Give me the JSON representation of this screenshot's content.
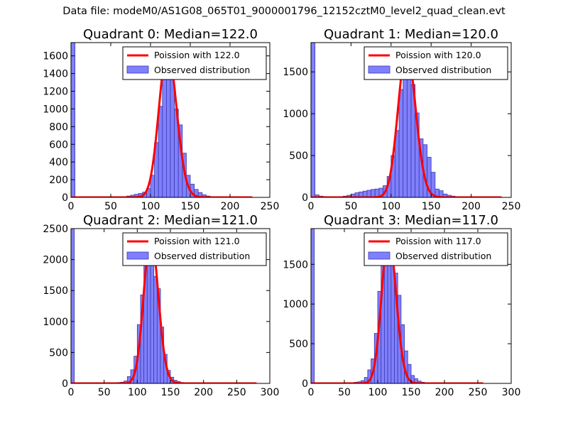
{
  "figure": {
    "suptitle": "Data file: modeM0/AS1G08_065T01_9000001796_12152cztM0_level2_quad_clean.evt",
    "colors": {
      "bar_fill": "#8080ff",
      "bar_edge": "#3a3aa8",
      "poisson_line": "#ff0000",
      "legend_edge": "#000000"
    }
  },
  "chart_data": [
    {
      "type": "bar",
      "title": "Quadrant 0: Median=122.0",
      "xlim": [
        0,
        250
      ],
      "ylim": [
        0,
        1750
      ],
      "xticks": [
        0,
        50,
        100,
        150,
        200,
        250
      ],
      "yticks": [
        0,
        200,
        400,
        600,
        800,
        1000,
        1200,
        1400,
        1600
      ],
      "legend": {
        "position": "upper right",
        "entries": [
          "Poission with 122.0",
          "Observed distribution"
        ]
      },
      "bin_width": 5,
      "bins": [
        [
          0,
          1750
        ],
        [
          65,
          8
        ],
        [
          70,
          15
        ],
        [
          75,
          25
        ],
        [
          80,
          35
        ],
        [
          85,
          45
        ],
        [
          90,
          60
        ],
        [
          95,
          100
        ],
        [
          100,
          250
        ],
        [
          105,
          620
        ],
        [
          110,
          1030
        ],
        [
          115,
          1460
        ],
        [
          120,
          1620
        ],
        [
          125,
          1360
        ],
        [
          130,
          1000
        ],
        [
          135,
          820
        ],
        [
          140,
          500
        ],
        [
          145,
          250
        ],
        [
          150,
          150
        ],
        [
          155,
          90
        ],
        [
          160,
          55
        ],
        [
          165,
          30
        ],
        [
          170,
          15
        ],
        [
          175,
          8
        ]
      ],
      "poisson": {
        "mu": 122.0,
        "x_range": [
          0,
          228
        ],
        "peak": 1670
      }
    },
    {
      "type": "bar",
      "title": "Quadrant 1: Median=120.0",
      "xlim": [
        0,
        250
      ],
      "ylim": [
        0,
        1850
      ],
      "xticks": [
        0,
        50,
        100,
        150,
        200,
        250
      ],
      "yticks": [
        0,
        500,
        1000,
        1500
      ],
      "legend": {
        "position": "upper right",
        "entries": [
          "Poission with 120.0",
          "Observed distribution"
        ]
      },
      "bin_width": 5,
      "bins": [
        [
          0,
          1850
        ],
        [
          5,
          30
        ],
        [
          10,
          15
        ],
        [
          15,
          10
        ],
        [
          20,
          5
        ],
        [
          25,
          5
        ],
        [
          30,
          5
        ],
        [
          35,
          5
        ],
        [
          40,
          15
        ],
        [
          45,
          25
        ],
        [
          50,
          40
        ],
        [
          55,
          55
        ],
        [
          60,
          65
        ],
        [
          65,
          75
        ],
        [
          70,
          85
        ],
        [
          75,
          95
        ],
        [
          80,
          100
        ],
        [
          85,
          110
        ],
        [
          90,
          140
        ],
        [
          95,
          250
        ],
        [
          100,
          500
        ],
        [
          105,
          800
        ],
        [
          110,
          1290
        ],
        [
          115,
          1620
        ],
        [
          120,
          1540
        ],
        [
          125,
          1350
        ],
        [
          130,
          1010
        ],
        [
          135,
          700
        ],
        [
          140,
          630
        ],
        [
          145,
          480
        ],
        [
          150,
          300
        ],
        [
          155,
          100
        ],
        [
          160,
          80
        ],
        [
          165,
          40
        ],
        [
          170,
          25
        ],
        [
          175,
          15
        ]
      ],
      "poisson": {
        "mu": 120.0,
        "x_range": [
          0,
          238
        ],
        "peak": 1760
      }
    },
    {
      "type": "bar",
      "title": "Quadrant 2: Median=121.0",
      "xlim": [
        0,
        300
      ],
      "ylim": [
        0,
        2500
      ],
      "xticks": [
        0,
        50,
        100,
        150,
        200,
        250,
        300
      ],
      "yticks": [
        0,
        500,
        1000,
        1500,
        2000,
        2500
      ],
      "legend": {
        "position": "upper right",
        "entries": [
          "Poission with 121.0",
          "Observed distribution"
        ]
      },
      "bin_width": 5,
      "bins": [
        [
          0,
          2500
        ],
        [
          60,
          8
        ],
        [
          65,
          10
        ],
        [
          70,
          15
        ],
        [
          75,
          20
        ],
        [
          80,
          40
        ],
        [
          85,
          110
        ],
        [
          90,
          220
        ],
        [
          95,
          440
        ],
        [
          100,
          950
        ],
        [
          105,
          1430
        ],
        [
          110,
          1950
        ],
        [
          115,
          2130
        ],
        [
          120,
          2060
        ],
        [
          125,
          1730
        ],
        [
          130,
          1530
        ],
        [
          135,
          910
        ],
        [
          140,
          470
        ],
        [
          145,
          210
        ],
        [
          150,
          100
        ],
        [
          155,
          50
        ],
        [
          160,
          30
        ],
        [
          165,
          15
        ],
        [
          170,
          8
        ]
      ],
      "poisson": {
        "mu": 121.0,
        "x_range": [
          0,
          280
        ],
        "peak": 2380
      }
    },
    {
      "type": "bar",
      "title": "Quadrant 3: Median=117.0",
      "xlim": [
        0,
        300
      ],
      "ylim": [
        0,
        1950
      ],
      "xticks": [
        0,
        50,
        100,
        150,
        200,
        250,
        300
      ],
      "yticks": [
        0,
        500,
        1000,
        1500
      ],
      "legend": {
        "position": "upper right",
        "entries": [
          "Poission with 117.0",
          "Observed distribution"
        ]
      },
      "bin_width": 5,
      "bins": [
        [
          0,
          1950
        ],
        [
          50,
          5
        ],
        [
          55,
          8
        ],
        [
          60,
          10
        ],
        [
          65,
          15
        ],
        [
          70,
          20
        ],
        [
          75,
          35
        ],
        [
          80,
          75
        ],
        [
          85,
          170
        ],
        [
          90,
          310
        ],
        [
          95,
          630
        ],
        [
          100,
          1160
        ],
        [
          105,
          1620
        ],
        [
          110,
          1760
        ],
        [
          115,
          1820
        ],
        [
          120,
          1570
        ],
        [
          125,
          1390
        ],
        [
          130,
          1110
        ],
        [
          135,
          740
        ],
        [
          140,
          410
        ],
        [
          145,
          240
        ],
        [
          150,
          100
        ],
        [
          155,
          60
        ],
        [
          160,
          30
        ],
        [
          165,
          15
        ],
        [
          170,
          8
        ]
      ],
      "poisson": {
        "mu": 117.0,
        "x_range": [
          0,
          258
        ],
        "peak": 1860
      }
    }
  ]
}
